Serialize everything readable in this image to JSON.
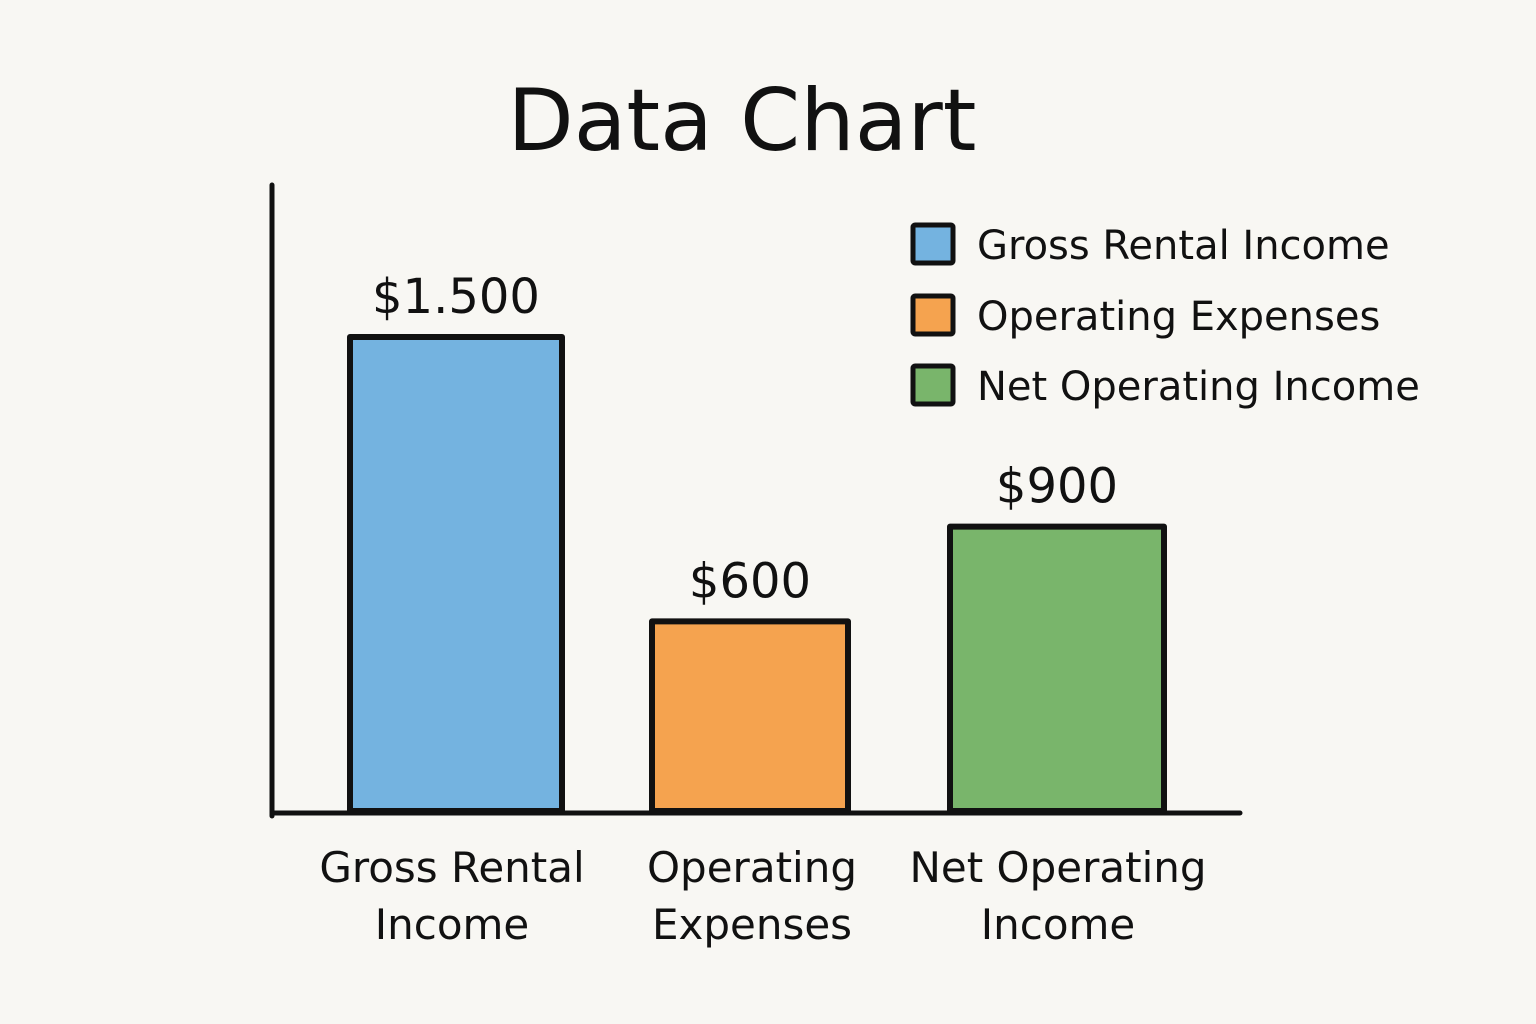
{
  "chart_data": {
    "type": "bar",
    "title": "Data Chart",
    "categories": [
      "Gross Rental Income",
      "Operating Expenses",
      "Net Operating Income"
    ],
    "category_tick_labels": [
      [
        "Gross Rental",
        "Income"
      ],
      [
        "Operating",
        "Expenses"
      ],
      [
        "Net Operating",
        "Income"
      ]
    ],
    "values": [
      1500,
      600,
      900
    ],
    "value_labels": [
      "$1.500",
      "$600",
      "$900"
    ],
    "colors": [
      "#74b3e0",
      "#f5a34f",
      "#79b56b"
    ],
    "legend": {
      "placement": "top-right",
      "entries": [
        "Gross Rental Income",
        "Operating Expenses",
        "Net Operating Income"
      ]
    },
    "xlabel": "",
    "ylabel": "",
    "grid": false
  }
}
